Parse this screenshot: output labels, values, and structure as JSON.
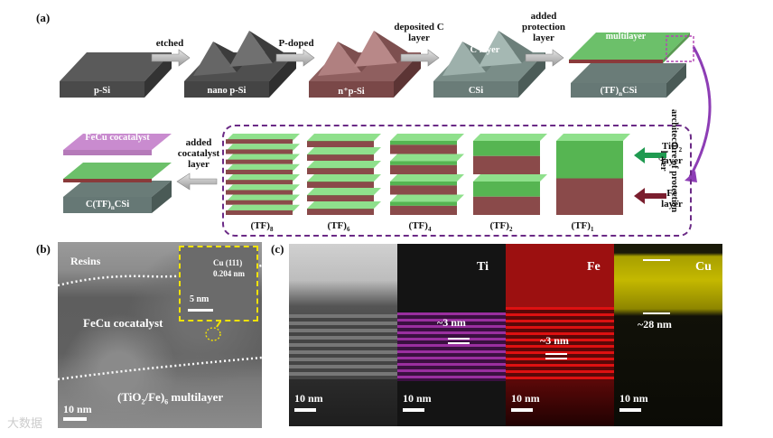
{
  "panel_a": {
    "letter": "(a)",
    "steps": [
      {
        "label": "p-Si",
        "arrow": "etched"
      },
      {
        "label": "nano p-Si",
        "arrow": "P-doped"
      },
      {
        "label": "n⁺p-Si",
        "arrow": "deposited C layer"
      },
      {
        "label": "CSi",
        "top_label": "C layer",
        "arrow": "added protection layer"
      },
      {
        "label": "(TF)nCSi",
        "top_label": "(TiO2/Fe)n multilayer"
      }
    ],
    "side_text": "architecture of protection layer",
    "multilayers": [
      "(TF)8",
      "(TF)6",
      "(TF)4",
      "(TF)2",
      "(TF)1"
    ],
    "legend": [
      {
        "label": "TiO2 layer",
        "color": "#3cb04a"
      },
      {
        "label": "Fe layer",
        "color": "#7a1e2e"
      }
    ],
    "final": {
      "label": "C(TF)nCSi",
      "top_label": "FeCu cocatalyst",
      "arrow": "added cocatalyst layer"
    }
  },
  "panel_b": {
    "letter": "(b)",
    "resins": "Resins",
    "cocatalyst": "FeCu cocatalyst",
    "multilayer": "(TiO2/Fe)6 multilayer",
    "scale": "10 nm",
    "inset": {
      "line1": "Cu (111)",
      "line2": "0.204 nm",
      "scale": "5 nm"
    }
  },
  "panel_c": {
    "letter": "(c)",
    "maps": [
      {
        "element": "",
        "scale": "10 nm",
        "annotation": ""
      },
      {
        "element": "Ti",
        "scale": "10 nm",
        "annotation": "~3 nm"
      },
      {
        "element": "Fe",
        "scale": "10 nm",
        "annotation": "~3 nm"
      },
      {
        "element": "Cu",
        "scale": "10 nm",
        "annotation": "~28 nm"
      }
    ]
  },
  "watermark": "大数据"
}
